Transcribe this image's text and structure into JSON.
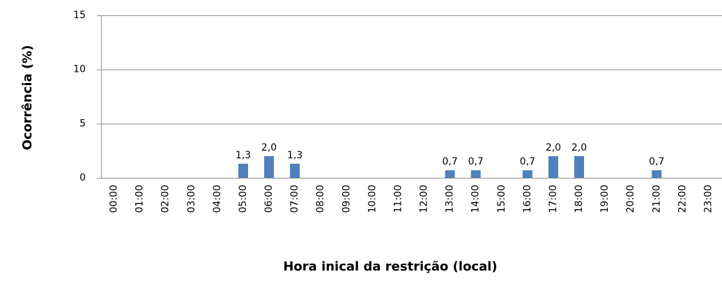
{
  "chart_data": {
    "type": "bar",
    "x_label": "Hora inical da restrição (local)",
    "y_label": "Ocorrência (%)",
    "categories": [
      "00:00",
      "01:00",
      "02:00",
      "03:00",
      "04:00",
      "05:00",
      "06:00",
      "07:00",
      "08:00",
      "09:00",
      "10:00",
      "11:00",
      "12:00",
      "13:00",
      "14:00",
      "15:00",
      "16:00",
      "17:00",
      "18:00",
      "19:00",
      "20:00",
      "21:00",
      "22:00",
      "23:00"
    ],
    "values": [
      0,
      0,
      0,
      0,
      0,
      1.3,
      2.0,
      1.3,
      0,
      0,
      0,
      0,
      0,
      0.7,
      0.7,
      0,
      0.7,
      2.0,
      2.0,
      0,
      0,
      0.7,
      0,
      0
    ],
    "value_labels": [
      null,
      null,
      null,
      null,
      null,
      "1,3",
      "2,0",
      "1,3",
      null,
      null,
      null,
      null,
      null,
      "0,7",
      "0,7",
      null,
      "0,7",
      "2,0",
      "2,0",
      null,
      null,
      "0,7",
      null,
      null
    ],
    "color": "#4f81bd",
    "ylim": [
      0,
      15
    ],
    "yticks": [
      0,
      5,
      10,
      15
    ],
    "grid": true
  }
}
